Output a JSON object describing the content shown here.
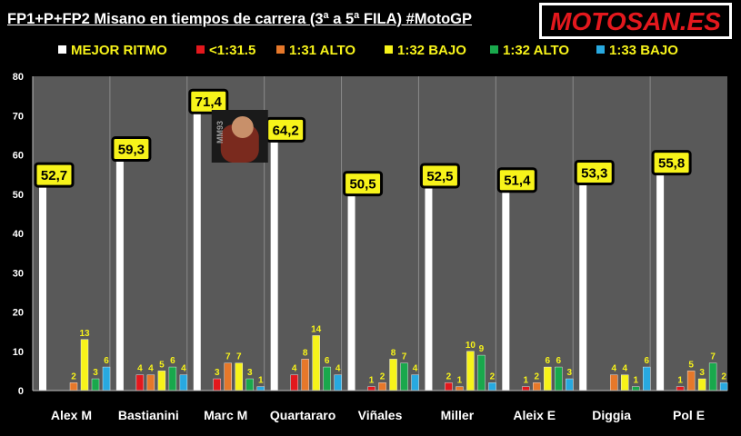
{
  "title": "FP1+P+FP2 Misano en tiempos de carrera (3ª a 5ª FILA) #MotoGP",
  "logo_text": "MOTOSAN.ES",
  "photo_text": "MM93",
  "chart_data": {
    "type": "bar",
    "title": "FP1+P+FP2 Misano en tiempos de carrera (3ª a 5ª FILA) #MotoGP",
    "categories": [
      "Alex M",
      "Bastianini",
      "Marc M",
      "Quartararo",
      "Viñales",
      "Miller",
      "Aleix E",
      "Diggia",
      "Pol E"
    ],
    "ylim": [
      0,
      80
    ],
    "yticks": [
      0,
      10,
      20,
      30,
      40,
      50,
      60,
      70,
      80
    ],
    "grid": false,
    "legend_position": "top",
    "series": [
      {
        "name": "MEJOR RITMO",
        "color": "#ffffff",
        "labels": [
          "52,7",
          "59,3",
          "71,4",
          "64,2",
          "50,5",
          "52,5",
          "51,4",
          "53,3",
          "55,8"
        ],
        "values": [
          52.7,
          59.3,
          71.4,
          64.2,
          50.5,
          52.5,
          51.4,
          53.3,
          55.8
        ]
      },
      {
        "name": "<1:31.5",
        "color": "#e3181d",
        "values": [
          0,
          4,
          3,
          4,
          1,
          2,
          1,
          0,
          1
        ]
      },
      {
        "name": "1:31 ALTO",
        "color": "#e6782a",
        "values": [
          2,
          4,
          7,
          8,
          2,
          1,
          2,
          4,
          5
        ]
      },
      {
        "name": "1:32 BAJO",
        "color": "#f7f31a",
        "values": [
          13,
          5,
          7,
          14,
          8,
          10,
          6,
          4,
          3
        ]
      },
      {
        "name": "1:32 ALTO",
        "color": "#19a84c",
        "values": [
          3,
          6,
          3,
          6,
          7,
          9,
          6,
          1,
          7
        ]
      },
      {
        "name": "1:33 BAJO",
        "color": "#28a9e0",
        "values": [
          6,
          4,
          1,
          4,
          4,
          2,
          3,
          6,
          2
        ]
      }
    ]
  }
}
